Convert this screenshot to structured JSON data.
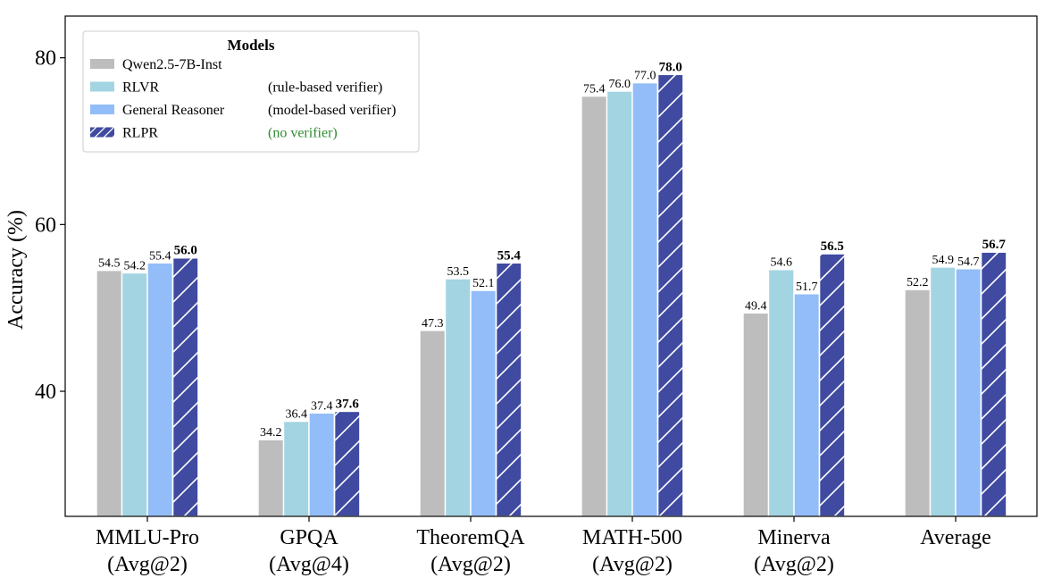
{
  "chart_data": {
    "type": "bar",
    "title": "",
    "xlabel": "",
    "ylabel": "Accuracy (%)",
    "ylim": [
      25,
      85
    ],
    "yticks": [
      40,
      60,
      80
    ],
    "categories": [
      [
        "MMLU-Pro",
        "(Avg@2)"
      ],
      [
        "GPQA",
        "(Avg@4)"
      ],
      [
        "TheoremQA",
        "(Avg@2)"
      ],
      [
        "MATH-500",
        "(Avg@2)"
      ],
      [
        "Minerva",
        "(Avg@2)"
      ],
      [
        "Average",
        ""
      ]
    ],
    "series": [
      {
        "name": "Qwen2.5-7B-Inst",
        "note": "",
        "color": "#bdbdbd",
        "hatch": false,
        "bold_labels": false,
        "values": [
          54.5,
          34.2,
          47.3,
          75.4,
          49.4,
          52.2
        ]
      },
      {
        "name": "RLVR",
        "note": "(rule-based verifier)",
        "color": "#a3d4e2",
        "hatch": false,
        "bold_labels": false,
        "values": [
          54.2,
          36.4,
          53.5,
          76.0,
          54.6,
          54.9
        ]
      },
      {
        "name": "General Reasoner",
        "note": "(model-based verifier)",
        "color": "#92bdf8",
        "hatch": false,
        "bold_labels": false,
        "values": [
          55.4,
          37.4,
          52.1,
          77.0,
          51.7,
          54.7
        ]
      },
      {
        "name": "RLPR",
        "note": "(no verifier)",
        "color": "#3f4aa0",
        "hatch": true,
        "bold_labels": true,
        "values": [
          56.0,
          37.6,
          55.4,
          78.0,
          56.5,
          56.7
        ]
      }
    ],
    "legend": {
      "title": "Models",
      "placement": "top-left",
      "note_highlight_color": "#2e8b2e"
    }
  }
}
